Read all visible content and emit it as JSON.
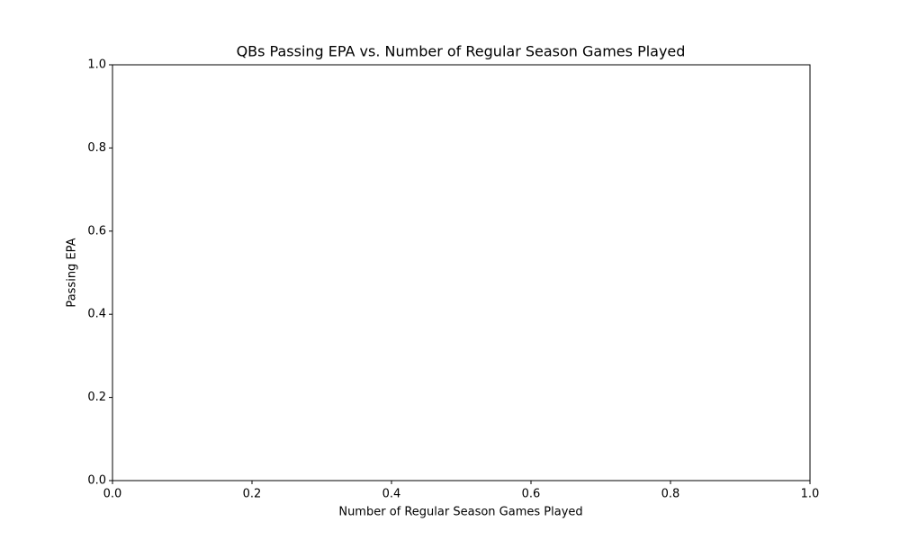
{
  "chart_data": {
    "type": "scatter",
    "title": "QBs Passing EPA vs. Number of Regular Season Games Played",
    "x_label": "Number of Regular Season Games Played",
    "y_label": "Passing EPA",
    "xlim": [
      0,
      1
    ],
    "ylim": [
      0,
      1
    ],
    "xticks": [
      {
        "value": 0,
        "label": "0.0"
      },
      0.2,
      0.4,
      0.6,
      0.8,
      {
        "value": 1,
        "label": "1.0"
      }
    ],
    "yticks": [
      {
        "value": 0,
        "label": "0.0"
      },
      0.2,
      0.4,
      0.6,
      0.8,
      {
        "value": 1,
        "label": "1.0"
      }
    ],
    "grid": false
  }
}
